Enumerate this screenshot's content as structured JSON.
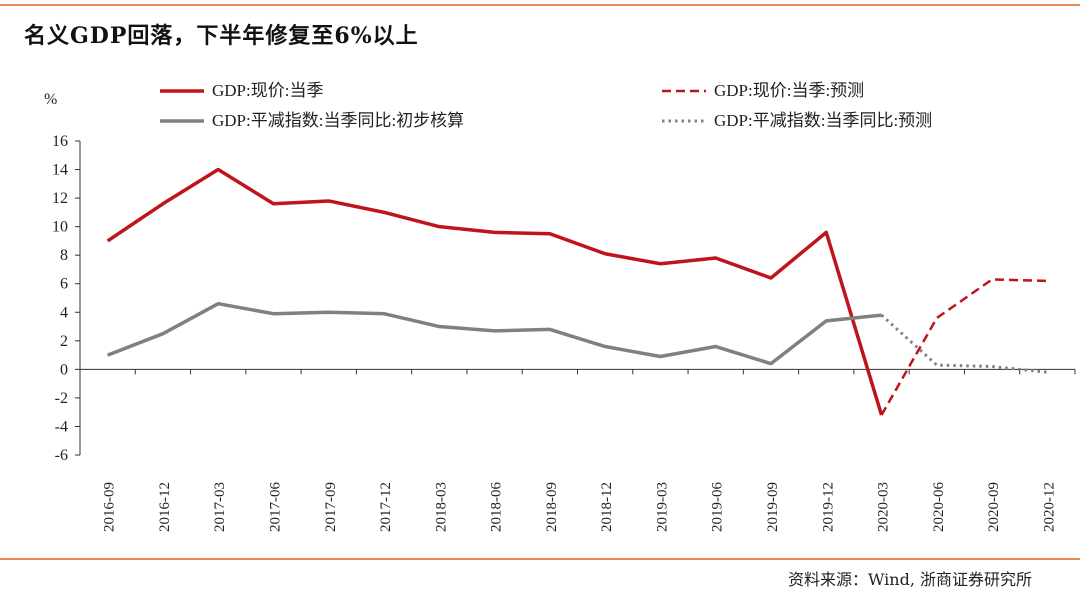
{
  "title": "名义GDP回落，下半年修复至6%以上",
  "source": "资料来源：Wind, 浙商证券研究所",
  "colors": {
    "accent": "#e8874a",
    "gdp": "#c0141c",
    "deflator": "#808080"
  },
  "chart_data": {
    "type": "line",
    "title": "名义GDP回落，下半年修复至6%以上",
    "ylabel": "%",
    "xlabel": "",
    "ylim": [
      -6,
      16
    ],
    "yticks": [
      16,
      14,
      12,
      10,
      8,
      6,
      4,
      2,
      0,
      -2,
      -4,
      -6
    ],
    "categories": [
      "2016-09",
      "2016-12",
      "2017-03",
      "2017-06",
      "2017-09",
      "2017-12",
      "2018-03",
      "2018-06",
      "2018-09",
      "2018-12",
      "2019-03",
      "2019-06",
      "2019-09",
      "2019-12",
      "2020-03",
      "2020-06",
      "2020-09",
      "2020-12"
    ],
    "legend_position": "top",
    "series": [
      {
        "name": "GDP:现价:当季",
        "style": "solid",
        "color": "#c0141c",
        "values": [
          9.0,
          11.6,
          14.0,
          11.6,
          11.8,
          11.0,
          10.0,
          9.6,
          9.5,
          8.1,
          7.4,
          7.8,
          6.4,
          9.6,
          -3.2,
          null,
          null,
          null
        ]
      },
      {
        "name": "GDP:现价:当季:预测",
        "style": "dashed",
        "color": "#c0141c",
        "values": [
          null,
          null,
          null,
          null,
          null,
          null,
          null,
          null,
          null,
          null,
          null,
          null,
          null,
          null,
          -3.2,
          3.6,
          6.3,
          6.2
        ]
      },
      {
        "name": "GDP:平减指数:当季同比:初步核算",
        "style": "solid",
        "color": "#808080",
        "values": [
          1.0,
          2.5,
          4.6,
          3.9,
          4.0,
          3.9,
          3.0,
          2.7,
          2.8,
          1.6,
          0.9,
          1.6,
          0.4,
          3.4,
          3.8,
          null,
          null,
          null
        ]
      },
      {
        "name": "GDP:平减指数:当季同比:预测",
        "style": "dotted",
        "color": "#808080",
        "values": [
          null,
          null,
          null,
          null,
          null,
          null,
          null,
          null,
          null,
          null,
          null,
          null,
          null,
          null,
          3.8,
          0.3,
          0.2,
          -0.2
        ]
      }
    ]
  }
}
